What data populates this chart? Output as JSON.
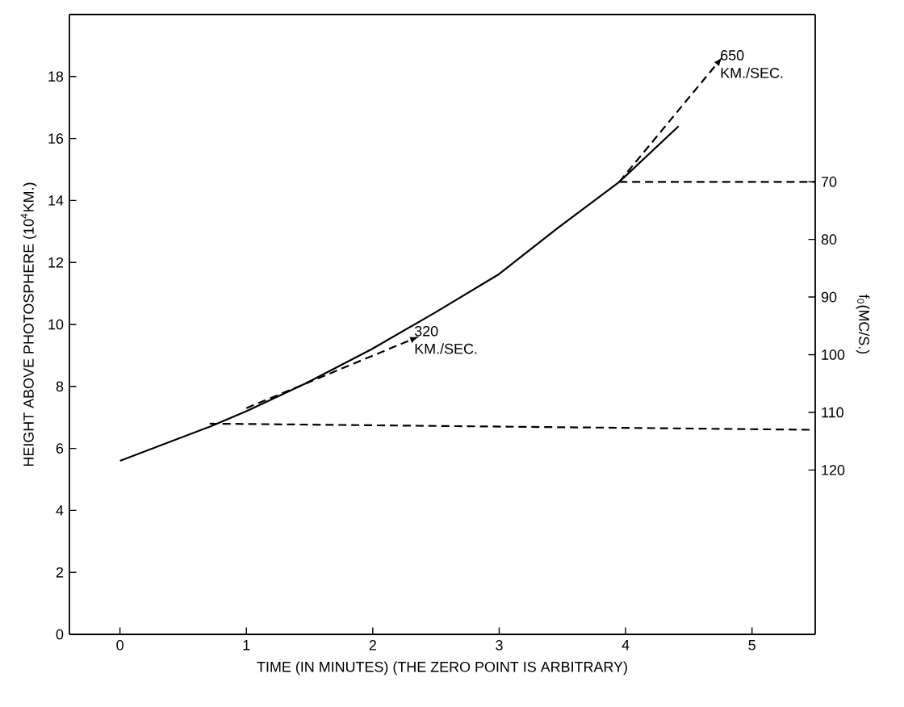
{
  "chart_data": {
    "type": "line",
    "xlabel": "TIME (IN MINUTES) (THE ZERO POINT IS ARBITRARY)",
    "ylabel": "HEIGHT ABOVE PHOTOSPHERE (10$^{4}$KM.)",
    "y2label": "f$_{0}$(MC/S.)",
    "xlim": [
      -0.4,
      5.5
    ],
    "ylim": [
      0,
      20
    ],
    "xticks": [
      0,
      1,
      2,
      3,
      4,
      5
    ],
    "yticks": [
      0,
      2,
      4,
      6,
      8,
      10,
      12,
      14,
      16,
      18
    ],
    "y2lim": [
      148.5,
      41
    ],
    "y2ticks": [
      70,
      80,
      90,
      100,
      110,
      120
    ],
    "series": [
      {
        "color": "#000000",
        "line_style": "solid",
        "x": [
          0,
          0.71,
          1.0,
          1.47,
          1.99,
          2.5,
          2.99,
          3.46,
          3.95,
          4.42
        ],
        "values": [
          5.6,
          6.7,
          7.2,
          8.1,
          9.2,
          10.4,
          11.6,
          13.1,
          14.6,
          16.4
        ]
      },
      {
        "color": "#000000",
        "line_style": "dashed",
        "x": [
          0.71,
          5.5
        ],
        "values": [
          6.8,
          6.6
        ]
      },
      {
        "color": "#000000",
        "line_style": "dashed",
        "x": [
          3.95,
          5.5
        ],
        "values": [
          14.6,
          14.6
        ]
      },
      {
        "color": "#000000",
        "line_style": "dashed",
        "x": [
          1.0,
          2.3
        ],
        "values": [
          7.3,
          9.5
        ]
      },
      {
        "color": "#000000",
        "line_style": "dashed",
        "x": [
          3.95,
          4.72
        ],
        "values": [
          14.6,
          18.4
        ]
      }
    ],
    "annotations": [
      {
        "text": "320 KM./SEC.",
        "x": 2.3,
        "y": 9.5
      },
      {
        "text": "650 KM./SEC.",
        "x": 4.72,
        "y": 18.4
      }
    ]
  }
}
